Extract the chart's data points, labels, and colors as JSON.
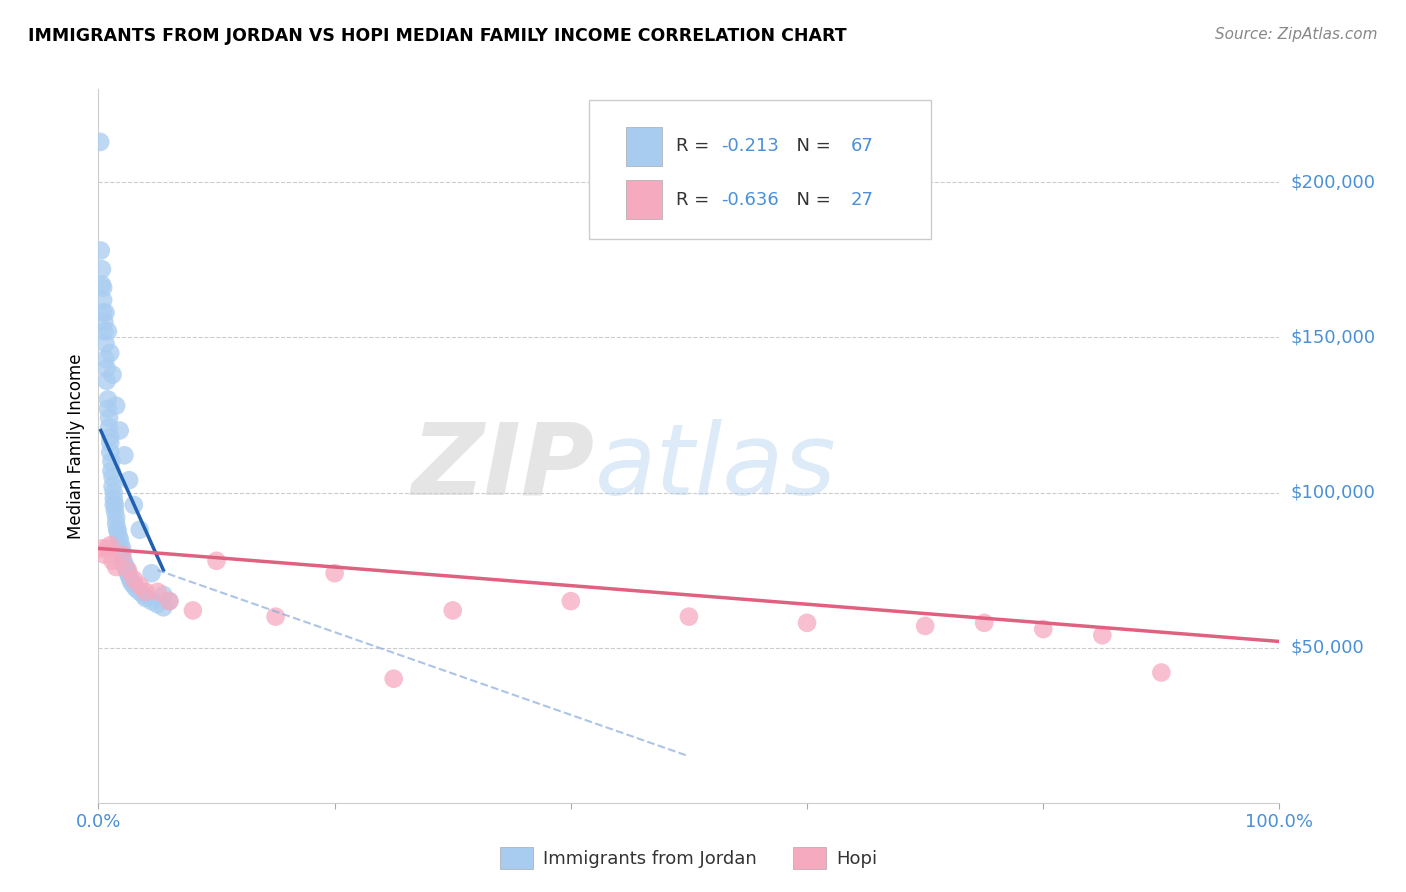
{
  "title": "IMMIGRANTS FROM JORDAN VS HOPI MEDIAN FAMILY INCOME CORRELATION CHART",
  "source": "Source: ZipAtlas.com",
  "ylabel": "Median Family Income",
  "xlim": [
    0.0,
    100.0
  ],
  "ylim": [
    0,
    230000
  ],
  "yticks": [
    50000,
    100000,
    150000,
    200000
  ],
  "ytick_labels": [
    "$50,000",
    "$100,000",
    "$150,000",
    "$200,000"
  ],
  "blue_R": -0.213,
  "blue_N": 67,
  "pink_R": -0.636,
  "pink_N": 27,
  "blue_color": "#A8CCF0",
  "pink_color": "#F5AABF",
  "trend_blue_color": "#2060B0",
  "trend_blue_dash_color": "#8AABDC",
  "trend_pink_color": "#E06080",
  "axis_color": "#4A90D9",
  "background_color": "#FFFFFF",
  "watermark_zip": "ZIP",
  "watermark_atlas": "atlas",
  "blue_scatter_x": [
    0.15,
    0.3,
    0.3,
    0.4,
    0.4,
    0.5,
    0.5,
    0.6,
    0.6,
    0.7,
    0.7,
    0.8,
    0.8,
    0.9,
    0.9,
    1.0,
    1.0,
    1.0,
    1.1,
    1.1,
    1.2,
    1.2,
    1.3,
    1.3,
    1.4,
    1.4,
    1.5,
    1.5,
    1.6,
    1.7,
    1.8,
    1.9,
    2.0,
    2.0,
    2.1,
    2.2,
    2.3,
    2.4,
    2.5,
    2.6,
    2.7,
    2.8,
    3.0,
    3.2,
    3.5,
    3.8,
    4.0,
    4.5,
    5.0,
    5.5,
    0.2,
    0.4,
    0.6,
    0.8,
    1.0,
    1.2,
    1.5,
    1.8,
    2.2,
    2.6,
    3.0,
    3.5,
    4.5,
    5.5,
    6.0,
    1.3,
    1.6
  ],
  "blue_scatter_y": [
    213000,
    172000,
    167000,
    162000,
    158000,
    155000,
    152000,
    148000,
    143000,
    140000,
    136000,
    130000,
    127000,
    124000,
    121000,
    118000,
    116000,
    113000,
    110000,
    107000,
    105000,
    102000,
    100000,
    98000,
    96000,
    94000,
    92000,
    90000,
    88000,
    86000,
    85000,
    83000,
    82000,
    80000,
    78000,
    77000,
    76000,
    75000,
    74000,
    73000,
    72000,
    71000,
    70000,
    69000,
    68000,
    67000,
    66000,
    65000,
    64000,
    63000,
    178000,
    166000,
    158000,
    152000,
    145000,
    138000,
    128000,
    120000,
    112000,
    104000,
    96000,
    88000,
    74000,
    67000,
    65000,
    96000,
    88000
  ],
  "pink_scatter_x": [
    0.3,
    0.5,
    0.8,
    1.0,
    1.2,
    1.5,
    2.0,
    2.5,
    3.0,
    3.5,
    4.0,
    5.0,
    6.0,
    8.0,
    10.0,
    15.0,
    20.0,
    25.0,
    30.0,
    40.0,
    50.0,
    60.0,
    70.0,
    75.0,
    80.0,
    85.0,
    90.0
  ],
  "pink_scatter_y": [
    82000,
    80000,
    82000,
    83000,
    78000,
    76000,
    80000,
    75000,
    72000,
    70000,
    68000,
    68000,
    65000,
    62000,
    78000,
    60000,
    74000,
    40000,
    62000,
    65000,
    60000,
    58000,
    57000,
    58000,
    56000,
    54000,
    42000
  ],
  "blue_trend_x0": 0.2,
  "blue_trend_x1": 5.5,
  "blue_trend_y0": 120000,
  "blue_trend_y1": 75000,
  "blue_dash_x0": 5.0,
  "blue_dash_x1": 50.0,
  "blue_dash_y0": 75000,
  "blue_dash_y1": 15000,
  "pink_trend_x0": 0.0,
  "pink_trend_x1": 100.0,
  "pink_trend_y0": 82000,
  "pink_trend_y1": 52000
}
